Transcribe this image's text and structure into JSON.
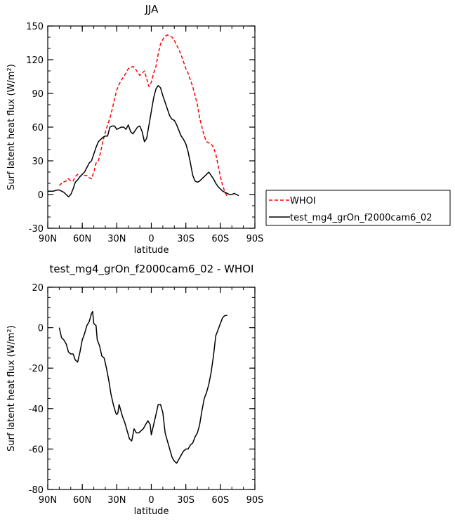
{
  "chart_data": [
    {
      "type": "line",
      "title": "JJA",
      "xlabel": "latitude",
      "ylabel": "Surf latent heat flux",
      "yunit": "(W/m²)",
      "xlim": [
        90,
        -90
      ],
      "ylim": [
        -30,
        150
      ],
      "x_ticks": [
        90,
        60,
        30,
        0,
        -30,
        -60,
        -90
      ],
      "x_tick_labels": [
        "90N",
        "60N",
        "30N",
        "0",
        "30S",
        "60S",
        "90S"
      ],
      "y_ticks": [
        -30,
        0,
        30,
        60,
        90,
        120,
        150
      ],
      "y_tick_labels": [
        "-30",
        "0",
        "30",
        "60",
        "90",
        "120",
        "150"
      ],
      "legend_position": "right",
      "series": [
        {
          "name": "WHOI",
          "color": "#ff0000",
          "dash": true,
          "points": [
            [
              80,
              8
            ],
            [
              77,
              11
            ],
            [
              74,
              12
            ],
            [
              72,
              14
            ],
            [
              70,
              12
            ],
            [
              68,
              12
            ],
            [
              66,
              16
            ],
            [
              64,
              18
            ],
            [
              62,
              16
            ],
            [
              60,
              18
            ],
            [
              58,
              17
            ],
            [
              56,
              17
            ],
            [
              54,
              15
            ],
            [
              52,
              14
            ],
            [
              50,
              20
            ],
            [
              48,
              28
            ],
            [
              46,
              30
            ],
            [
              44,
              38
            ],
            [
              42,
              48
            ],
            [
              40,
              55
            ],
            [
              38,
              62
            ],
            [
              36,
              68
            ],
            [
              34,
              76
            ],
            [
              32,
              85
            ],
            [
              30,
              93
            ],
            [
              28,
              98
            ],
            [
              26,
              102
            ],
            [
              24,
              105
            ],
            [
              22,
              108
            ],
            [
              20,
              112
            ],
            [
              18,
              113
            ],
            [
              16,
              114
            ],
            [
              14,
              112
            ],
            [
              12,
              109
            ],
            [
              10,
              106
            ],
            [
              8,
              108
            ],
            [
              6,
              110
            ],
            [
              4,
              103
            ],
            [
              2,
              96
            ],
            [
              0,
              100
            ],
            [
              -2,
              108
            ],
            [
              -4,
              114
            ],
            [
              -6,
              125
            ],
            [
              -8,
              134
            ],
            [
              -10,
              138
            ],
            [
              -12,
              141
            ],
            [
              -14,
              142
            ],
            [
              -16,
              141
            ],
            [
              -18,
              140
            ],
            [
              -20,
              137
            ],
            [
              -22,
              133
            ],
            [
              -24,
              129
            ],
            [
              -26,
              124
            ],
            [
              -28,
              118
            ],
            [
              -30,
              112
            ],
            [
              -32,
              108
            ],
            [
              -34,
              102
            ],
            [
              -36,
              96
            ],
            [
              -38,
              88
            ],
            [
              -40,
              80
            ],
            [
              -42,
              68
            ],
            [
              -44,
              60
            ],
            [
              -46,
              52
            ],
            [
              -48,
              47
            ],
            [
              -50,
              46
            ],
            [
              -52,
              45
            ],
            [
              -54,
              42
            ],
            [
              -56,
              36
            ],
            [
              -58,
              26
            ],
            [
              -60,
              16
            ],
            [
              -62,
              8
            ],
            [
              -64,
              2
            ],
            [
              -66,
              -2
            ]
          ]
        },
        {
          "name": "test_mg4_grOn_f2000cam6_02",
          "color": "#000000",
          "dash": false,
          "points": [
            [
              90,
              3
            ],
            [
              88,
              3
            ],
            [
              85,
              3
            ],
            [
              82,
              4
            ],
            [
              80,
              4
            ],
            [
              78,
              3
            ],
            [
              76,
              2
            ],
            [
              74,
              0
            ],
            [
              72,
              -2
            ],
            [
              70,
              0
            ],
            [
              68,
              5
            ],
            [
              66,
              11
            ],
            [
              64,
              13
            ],
            [
              62,
              16
            ],
            [
              60,
              18
            ],
            [
              58,
              20
            ],
            [
              56,
              24
            ],
            [
              54,
              28
            ],
            [
              52,
              30
            ],
            [
              50,
              36
            ],
            [
              48,
              42
            ],
            [
              46,
              47
            ],
            [
              44,
              49
            ],
            [
              42,
              51
            ],
            [
              40,
              52
            ],
            [
              38,
              52
            ],
            [
              36,
              60
            ],
            [
              34,
              61
            ],
            [
              32,
              61
            ],
            [
              30,
              58
            ],
            [
              28,
              59
            ],
            [
              26,
              60
            ],
            [
              24,
              60
            ],
            [
              22,
              58
            ],
            [
              20,
              62
            ],
            [
              18,
              56
            ],
            [
              16,
              54
            ],
            [
              14,
              57
            ],
            [
              12,
              60
            ],
            [
              10,
              61
            ],
            [
              8,
              56
            ],
            [
              6,
              47
            ],
            [
              4,
              50
            ],
            [
              2,
              62
            ],
            [
              0,
              74
            ],
            [
              -2,
              86
            ],
            [
              -4,
              94
            ],
            [
              -6,
              97
            ],
            [
              -8,
              95
            ],
            [
              -10,
              88
            ],
            [
              -12,
              82
            ],
            [
              -14,
              76
            ],
            [
              -16,
              70
            ],
            [
              -18,
              67
            ],
            [
              -20,
              66
            ],
            [
              -22,
              62
            ],
            [
              -24,
              57
            ],
            [
              -26,
              52
            ],
            [
              -28,
              49
            ],
            [
              -30,
              45
            ],
            [
              -32,
              38
            ],
            [
              -34,
              28
            ],
            [
              -36,
              17
            ],
            [
              -38,
              12
            ],
            [
              -40,
              11
            ],
            [
              -42,
              12
            ],
            [
              -44,
              14
            ],
            [
              -46,
              16
            ],
            [
              -48,
              18
            ],
            [
              -50,
              20
            ],
            [
              -52,
              17
            ],
            [
              -54,
              14
            ],
            [
              -56,
              10
            ],
            [
              -58,
              7
            ],
            [
              -60,
              5
            ],
            [
              -62,
              3
            ],
            [
              -64,
              2
            ],
            [
              -66,
              1
            ],
            [
              -68,
              0
            ],
            [
              -70,
              0
            ],
            [
              -72,
              1
            ],
            [
              -74,
              0
            ],
            [
              -76,
              -1
            ]
          ]
        }
      ]
    },
    {
      "type": "line",
      "title": "test_mg4_grOn_f2000cam6_02 - WHOI",
      "xlabel": "latitude",
      "ylabel": "Surf latent heat flux",
      "yunit": "(W/m²)",
      "xlim": [
        90,
        -90
      ],
      "ylim": [
        -80,
        20
      ],
      "x_ticks": [
        90,
        60,
        30,
        0,
        -30,
        -60,
        -90
      ],
      "x_tick_labels": [
        "90N",
        "60N",
        "30N",
        "0",
        "30S",
        "60S",
        "90S"
      ],
      "y_ticks": [
        -80,
        -60,
        -40,
        -20,
        0,
        20
      ],
      "y_tick_labels": [
        "-80",
        "-60",
        "-40",
        "-20",
        "0",
        "20"
      ],
      "series": [
        {
          "name": "",
          "color": "#000000",
          "dash": false,
          "points": [
            [
              80,
              0
            ],
            [
              78,
              -5
            ],
            [
              76,
              -6
            ],
            [
              74,
              -8
            ],
            [
              72,
              -12
            ],
            [
              70,
              -13
            ],
            [
              68,
              -13
            ],
            [
              66,
              -16
            ],
            [
              64,
              -17
            ],
            [
              62,
              -12
            ],
            [
              60,
              -6
            ],
            [
              58,
              -3
            ],
            [
              56,
              1
            ],
            [
              54,
              3
            ],
            [
              52,
              7
            ],
            [
              51,
              8
            ],
            [
              50,
              2
            ],
            [
              48,
              1
            ],
            [
              47,
              -6
            ],
            [
              45,
              -9
            ],
            [
              43,
              -14
            ],
            [
              41,
              -15
            ],
            [
              39,
              -20
            ],
            [
              37,
              -26
            ],
            [
              35,
              -33
            ],
            [
              33,
              -38
            ],
            [
              31,
              -42
            ],
            [
              30,
              -43
            ],
            [
              29,
              -42
            ],
            [
              28,
              -38
            ],
            [
              27,
              -40
            ],
            [
              25,
              -44
            ],
            [
              23,
              -47
            ],
            [
              21,
              -51
            ],
            [
              19,
              -55
            ],
            [
              17,
              -56
            ],
            [
              15,
              -50
            ],
            [
              13,
              -52
            ],
            [
              11,
              -52
            ],
            [
              9,
              -51
            ],
            [
              7,
              -50
            ],
            [
              5,
              -48
            ],
            [
              3,
              -46
            ],
            [
              1,
              -48
            ],
            [
              0,
              -53
            ],
            [
              -2,
              -48
            ],
            [
              -4,
              -43
            ],
            [
              -6,
              -38
            ],
            [
              -8,
              -38
            ],
            [
              -10,
              -42
            ],
            [
              -12,
              -52
            ],
            [
              -14,
              -56
            ],
            [
              -16,
              -60
            ],
            [
              -18,
              -64
            ],
            [
              -20,
              -66
            ],
            [
              -22,
              -67
            ],
            [
              -24,
              -65
            ],
            [
              -26,
              -63
            ],
            [
              -28,
              -61
            ],
            [
              -30,
              -60
            ],
            [
              -32,
              -60
            ],
            [
              -34,
              -58
            ],
            [
              -36,
              -57
            ],
            [
              -38,
              -54
            ],
            [
              -40,
              -52
            ],
            [
              -42,
              -48
            ],
            [
              -44,
              -41
            ],
            [
              -46,
              -35
            ],
            [
              -48,
              -32
            ],
            [
              -50,
              -28
            ],
            [
              -52,
              -22
            ],
            [
              -54,
              -14
            ],
            [
              -56,
              -4
            ],
            [
              -58,
              -1
            ],
            [
              -60,
              2
            ],
            [
              -62,
              5
            ],
            [
              -64,
              6
            ],
            [
              -66,
              6
            ]
          ]
        }
      ]
    }
  ]
}
